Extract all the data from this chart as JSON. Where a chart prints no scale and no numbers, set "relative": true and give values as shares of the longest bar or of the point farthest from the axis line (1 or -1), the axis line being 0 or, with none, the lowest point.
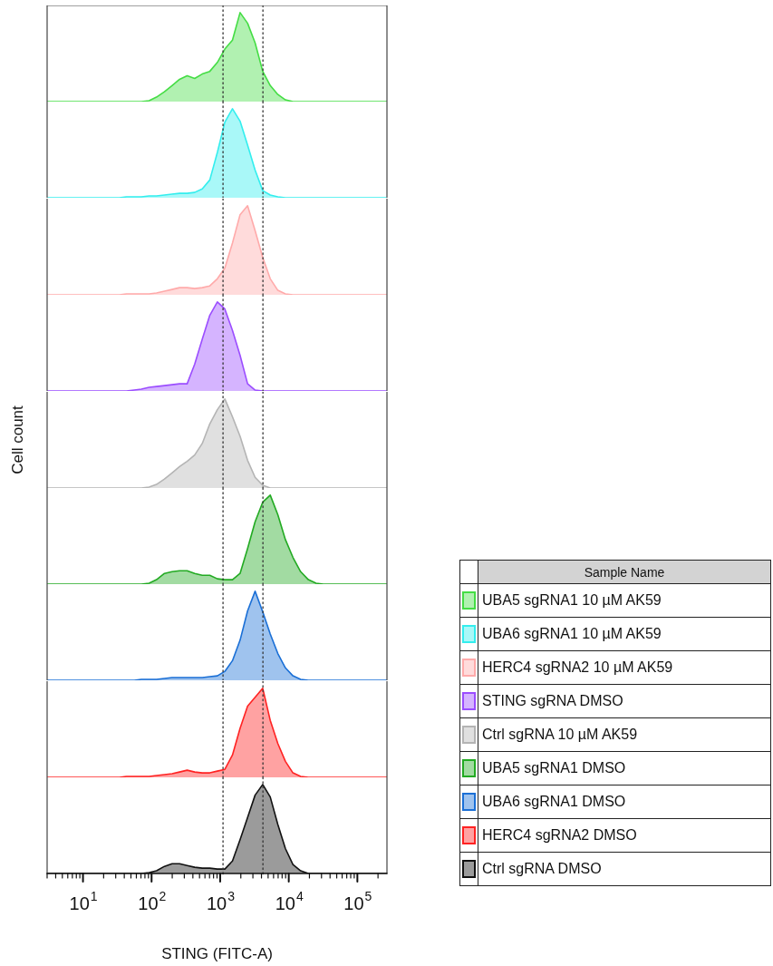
{
  "chart_data": [
    {
      "type": "area",
      "relative": true,
      "legend": "right",
      "legend_title": "Sample Name",
      "tick_labels": false,
      "xlim": [
        3,
        270000
      ],
      "log": "x",
      "x": [
        3,
        26,
        34,
        43,
        56,
        71,
        92,
        118,
        154,
        199,
        256,
        330,
        425,
        548,
        706,
        910,
        1170,
        1510,
        1950,
        2510,
        3230,
        4170,
        5370,
        6930,
        8930,
        11500,
        14900,
        19300,
        25000,
        32000,
        270000
      ],
      "series": [
        {
          "name": "UBA5 sgRNA1 10 µM AK59",
          "color": "#44dd44",
          "values": [
            0,
            0,
            0,
            0,
            0,
            0,
            0.01,
            0.05,
            0.11,
            0.18,
            0.25,
            0.29,
            0.26,
            0.31,
            0.34,
            0.44,
            0.59,
            0.69,
            1,
            0.88,
            0.66,
            0.34,
            0.18,
            0.08,
            0.02,
            0,
            0,
            0,
            0,
            0,
            0
          ]
        }
      ],
      "ref_lines": [
        {
          "axis": "x",
          "value": 1100,
          "color": "#333333",
          "line_style": "dotted"
        },
        {
          "axis": "x",
          "value": 4200,
          "color": "#333333",
          "line_style": "dotted"
        }
      ]
    },
    {
      "type": "area",
      "relative": true,
      "legend": "right",
      "tick_labels": false,
      "xlim": [
        3,
        270000
      ],
      "log": "x",
      "x": [
        3,
        26,
        34,
        43,
        56,
        71,
        92,
        118,
        154,
        199,
        256,
        330,
        425,
        548,
        706,
        910,
        1170,
        1510,
        1950,
        2510,
        3230,
        4170,
        5370,
        6930,
        8930,
        11500,
        14900,
        19300,
        25000,
        32000,
        270000
      ],
      "series": [
        {
          "name": "UBA6 sgRNA1 10 µM AK59",
          "color": "#33eeee",
          "values": [
            0,
            0,
            0,
            0.01,
            0.01,
            0.01,
            0.02,
            0.02,
            0.03,
            0.04,
            0.05,
            0.05,
            0.06,
            0.1,
            0.2,
            0.51,
            0.85,
            1,
            0.86,
            0.59,
            0.31,
            0.08,
            0.03,
            0.01,
            0,
            0,
            0,
            0,
            0,
            0,
            0
          ]
        }
      ],
      "ref_lines": [
        {
          "axis": "x",
          "value": 1100,
          "color": "#333333",
          "line_style": "dotted"
        },
        {
          "axis": "x",
          "value": 4200,
          "color": "#333333",
          "line_style": "dotted"
        }
      ]
    },
    {
      "type": "area",
      "relative": true,
      "legend": "right",
      "tick_labels": false,
      "xlim": [
        3,
        270000
      ],
      "log": "x",
      "x": [
        3,
        26,
        34,
        43,
        56,
        71,
        92,
        118,
        154,
        199,
        256,
        330,
        425,
        548,
        706,
        910,
        1170,
        1510,
        1950,
        2510,
        3230,
        4170,
        5370,
        6930,
        8930,
        11500,
        14900,
        19300,
        25000,
        32000,
        270000
      ],
      "series": [
        {
          "name": "HERC4 sgRNA2 10 µM AK59",
          "color": "#ffaaaa",
          "values": [
            0,
            0,
            0,
            0.01,
            0.01,
            0.01,
            0.01,
            0.02,
            0.04,
            0.06,
            0.08,
            0.08,
            0.07,
            0.08,
            0.1,
            0.18,
            0.3,
            0.58,
            0.9,
            1,
            0.72,
            0.42,
            0.18,
            0.05,
            0.01,
            0,
            0,
            0,
            0,
            0,
            0
          ]
        }
      ],
      "ref_lines": [
        {
          "axis": "x",
          "value": 1100,
          "color": "#333333",
          "line_style": "dotted"
        },
        {
          "axis": "x",
          "value": 4200,
          "color": "#333333",
          "line_style": "dotted"
        }
      ]
    },
    {
      "type": "area",
      "relative": true,
      "legend": "right",
      "tick_labels": false,
      "xlim": [
        3,
        270000
      ],
      "log": "x",
      "x": [
        3,
        26,
        34,
        43,
        56,
        71,
        92,
        118,
        154,
        199,
        256,
        330,
        425,
        548,
        706,
        910,
        1170,
        1510,
        1950,
        2510,
        3230,
        4170,
        5370,
        6930,
        8930,
        11500,
        14900,
        19300,
        25000,
        32000,
        270000
      ],
      "series": [
        {
          "name": "STING sgRNA DMSO",
          "color": "#9b4dff",
          "values": [
            0,
            0,
            0,
            0,
            0.01,
            0.02,
            0.04,
            0.05,
            0.06,
            0.07,
            0.08,
            0.08,
            0.3,
            0.58,
            0.85,
            1,
            0.92,
            0.68,
            0.4,
            0.08,
            0.01,
            0,
            0,
            0,
            0,
            0,
            0,
            0,
            0,
            0,
            0
          ]
        }
      ],
      "ref_lines": [
        {
          "axis": "x",
          "value": 1100,
          "color": "#333333",
          "line_style": "dotted"
        },
        {
          "axis": "x",
          "value": 4200,
          "color": "#333333",
          "line_style": "dotted"
        }
      ]
    },
    {
      "type": "area",
      "relative": true,
      "legend": "right",
      "tick_labels": false,
      "ylabel": "Cell count",
      "xlim": [
        3,
        270000
      ],
      "log": "x",
      "x": [
        3,
        26,
        34,
        43,
        56,
        71,
        92,
        118,
        154,
        199,
        256,
        330,
        425,
        548,
        706,
        910,
        1170,
        1510,
        1950,
        2510,
        3230,
        4170,
        5370,
        6930,
        8930,
        11500,
        14900,
        19300,
        25000,
        32000,
        270000
      ],
      "series": [
        {
          "name": "Ctrl sgRNA 10 µM AK59",
          "color": "#b4b4b4",
          "values": [
            0,
            0,
            0,
            0,
            0,
            0,
            0.01,
            0.04,
            0.1,
            0.17,
            0.24,
            0.3,
            0.37,
            0.5,
            0.72,
            0.88,
            1,
            0.8,
            0.58,
            0.31,
            0.12,
            0.03,
            0,
            0,
            0,
            0,
            0,
            0,
            0,
            0,
            0
          ]
        }
      ],
      "ref_lines": [
        {
          "axis": "x",
          "value": 1100,
          "color": "#333333",
          "line_style": "dotted"
        },
        {
          "axis": "x",
          "value": 4200,
          "color": "#333333",
          "line_style": "dotted"
        }
      ]
    },
    {
      "type": "area",
      "relative": true,
      "legend": "right",
      "tick_labels": false,
      "xlim": [
        3,
        270000
      ],
      "log": "x",
      "x": [
        3,
        26,
        34,
        43,
        56,
        71,
        92,
        118,
        154,
        199,
        256,
        330,
        425,
        548,
        706,
        910,
        1170,
        1510,
        1950,
        2510,
        3230,
        4170,
        5370,
        6930,
        8930,
        11500,
        14900,
        19300,
        25000,
        32000,
        270000
      ],
      "series": [
        {
          "name": "UBA5 sgRNA1 DMSO",
          "color": "#22aa22",
          "values": [
            0,
            0,
            0,
            0,
            0,
            0,
            0.01,
            0.05,
            0.12,
            0.14,
            0.15,
            0.15,
            0.12,
            0.1,
            0.1,
            0.06,
            0.05,
            0.05,
            0.12,
            0.4,
            0.7,
            0.92,
            1,
            0.78,
            0.5,
            0.3,
            0.14,
            0.05,
            0.01,
            0,
            0
          ]
        }
      ],
      "ref_lines": [
        {
          "axis": "x",
          "value": 1100,
          "color": "#333333",
          "line_style": "dotted"
        },
        {
          "axis": "x",
          "value": 4200,
          "color": "#333333",
          "line_style": "dotted"
        }
      ]
    },
    {
      "type": "area",
      "relative": true,
      "legend": "right",
      "tick_labels": false,
      "xlim": [
        3,
        270000
      ],
      "log": "x",
      "x": [
        3,
        26,
        34,
        43,
        56,
        71,
        92,
        118,
        154,
        199,
        256,
        330,
        425,
        548,
        706,
        910,
        1170,
        1510,
        1950,
        2510,
        3230,
        4170,
        5370,
        6930,
        8930,
        11500,
        14900,
        19300,
        25000,
        32000,
        270000
      ],
      "series": [
        {
          "name": "UBA6 sgRNA1 DMSO",
          "color": "#1a6fd6",
          "values": [
            0,
            0,
            0,
            0,
            0,
            0.01,
            0.01,
            0.01,
            0.02,
            0.03,
            0.03,
            0.03,
            0.03,
            0.03,
            0.04,
            0.05,
            0.1,
            0.22,
            0.45,
            0.78,
            1,
            0.77,
            0.52,
            0.3,
            0.14,
            0.05,
            0.01,
            0,
            0,
            0,
            0
          ]
        }
      ],
      "ref_lines": [
        {
          "axis": "x",
          "value": 1100,
          "color": "#333333",
          "line_style": "dotted"
        },
        {
          "axis": "x",
          "value": 4200,
          "color": "#333333",
          "line_style": "dotted"
        }
      ]
    },
    {
      "type": "area",
      "relative": true,
      "legend": "right",
      "tick_labels": false,
      "xlim": [
        3,
        270000
      ],
      "log": "x",
      "x": [
        3,
        26,
        34,
        43,
        56,
        71,
        92,
        118,
        154,
        199,
        256,
        330,
        425,
        548,
        706,
        910,
        1170,
        1510,
        1950,
        2510,
        3230,
        4170,
        5370,
        6930,
        8930,
        11500,
        14900,
        19300,
        25000,
        32000,
        270000
      ],
      "series": [
        {
          "name": "HERC4 sgRNA2 DMSO",
          "color": "#ff2222",
          "values": [
            0,
            0,
            0,
            0.01,
            0.01,
            0.01,
            0.01,
            0.02,
            0.03,
            0.04,
            0.06,
            0.08,
            0.06,
            0.05,
            0.05,
            0.07,
            0.09,
            0.25,
            0.55,
            0.8,
            0.9,
            1,
            0.64,
            0.38,
            0.18,
            0.05,
            0.01,
            0,
            0,
            0,
            0
          ]
        }
      ],
      "ref_lines": [
        {
          "axis": "x",
          "value": 1100,
          "color": "#333333",
          "line_style": "dotted"
        },
        {
          "axis": "x",
          "value": 4200,
          "color": "#333333",
          "line_style": "dotted"
        }
      ]
    },
    {
      "type": "area",
      "relative": true,
      "legend": "right",
      "tick_labels": "x",
      "xlabel": "STING (FITC-A)",
      "xlim": [
        3,
        270000
      ],
      "log": "x",
      "x": [
        3,
        26,
        34,
        43,
        56,
        71,
        92,
        118,
        154,
        199,
        256,
        330,
        425,
        548,
        706,
        910,
        1170,
        1510,
        1950,
        2510,
        3230,
        4170,
        5370,
        6930,
        8930,
        11500,
        14900,
        19300,
        25000,
        32000,
        270000
      ],
      "xticks": [
        {
          "value": 3,
          "label": null
        },
        {
          "value": 4,
          "label": null
        },
        {
          "value": 5,
          "label": null
        },
        {
          "value": 6,
          "label": null
        },
        {
          "value": 7,
          "label": null
        },
        {
          "value": 8,
          "label": null
        },
        {
          "value": 9,
          "label": null
        },
        {
          "value": 10,
          "label": "10$^{1}$"
        },
        {
          "value": 20,
          "label": null
        },
        {
          "value": 30,
          "label": null
        },
        {
          "value": 40,
          "label": null
        },
        {
          "value": 50,
          "label": null
        },
        {
          "value": 60,
          "label": null
        },
        {
          "value": 70,
          "label": null
        },
        {
          "value": 80,
          "label": null
        },
        {
          "value": 90,
          "label": null
        },
        {
          "value": 100,
          "label": "10$^{2}$"
        },
        {
          "value": 200,
          "label": null
        },
        {
          "value": 300,
          "label": null
        },
        {
          "value": 400,
          "label": null
        },
        {
          "value": 500,
          "label": null
        },
        {
          "value": 600,
          "label": null
        },
        {
          "value": 700,
          "label": null
        },
        {
          "value": 800,
          "label": null
        },
        {
          "value": 900,
          "label": null
        },
        {
          "value": 1000,
          "label": "10$^{3}$"
        },
        {
          "value": 2000,
          "label": null
        },
        {
          "value": 3000,
          "label": null
        },
        {
          "value": 4000,
          "label": null
        },
        {
          "value": 5000,
          "label": null
        },
        {
          "value": 6000,
          "label": null
        },
        {
          "value": 7000,
          "label": null
        },
        {
          "value": 8000,
          "label": null
        },
        {
          "value": 9000,
          "label": null
        },
        {
          "value": 10000,
          "label": "10$^{4}$"
        },
        {
          "value": 20000,
          "label": null
        },
        {
          "value": 30000,
          "label": null
        },
        {
          "value": 40000,
          "label": null
        },
        {
          "value": 50000,
          "label": null
        },
        {
          "value": 60000,
          "label": null
        },
        {
          "value": 70000,
          "label": null
        },
        {
          "value": 80000,
          "label": null
        },
        {
          "value": 90000,
          "label": null
        },
        {
          "value": 100000,
          "label": "10$^{5}$"
        },
        {
          "value": 200000,
          "label": null
        }
      ],
      "series": [
        {
          "name": "Ctrl sgRNA DMSO",
          "color": "#111111",
          "values": [
            0,
            0,
            0,
            0,
            0,
            0,
            0.01,
            0.03,
            0.08,
            0.11,
            0.11,
            0.09,
            0.07,
            0.06,
            0.06,
            0.05,
            0.05,
            0.14,
            0.38,
            0.63,
            0.88,
            1,
            0.86,
            0.55,
            0.28,
            0.1,
            0.03,
            0,
            0,
            0,
            0
          ]
        }
      ],
      "ref_lines": [
        {
          "axis": "x",
          "value": 1100,
          "color": "#333333",
          "line_style": "dotted"
        },
        {
          "axis": "x",
          "value": 4200,
          "color": "#333333",
          "line_style": "dotted"
        }
      ]
    }
  ]
}
